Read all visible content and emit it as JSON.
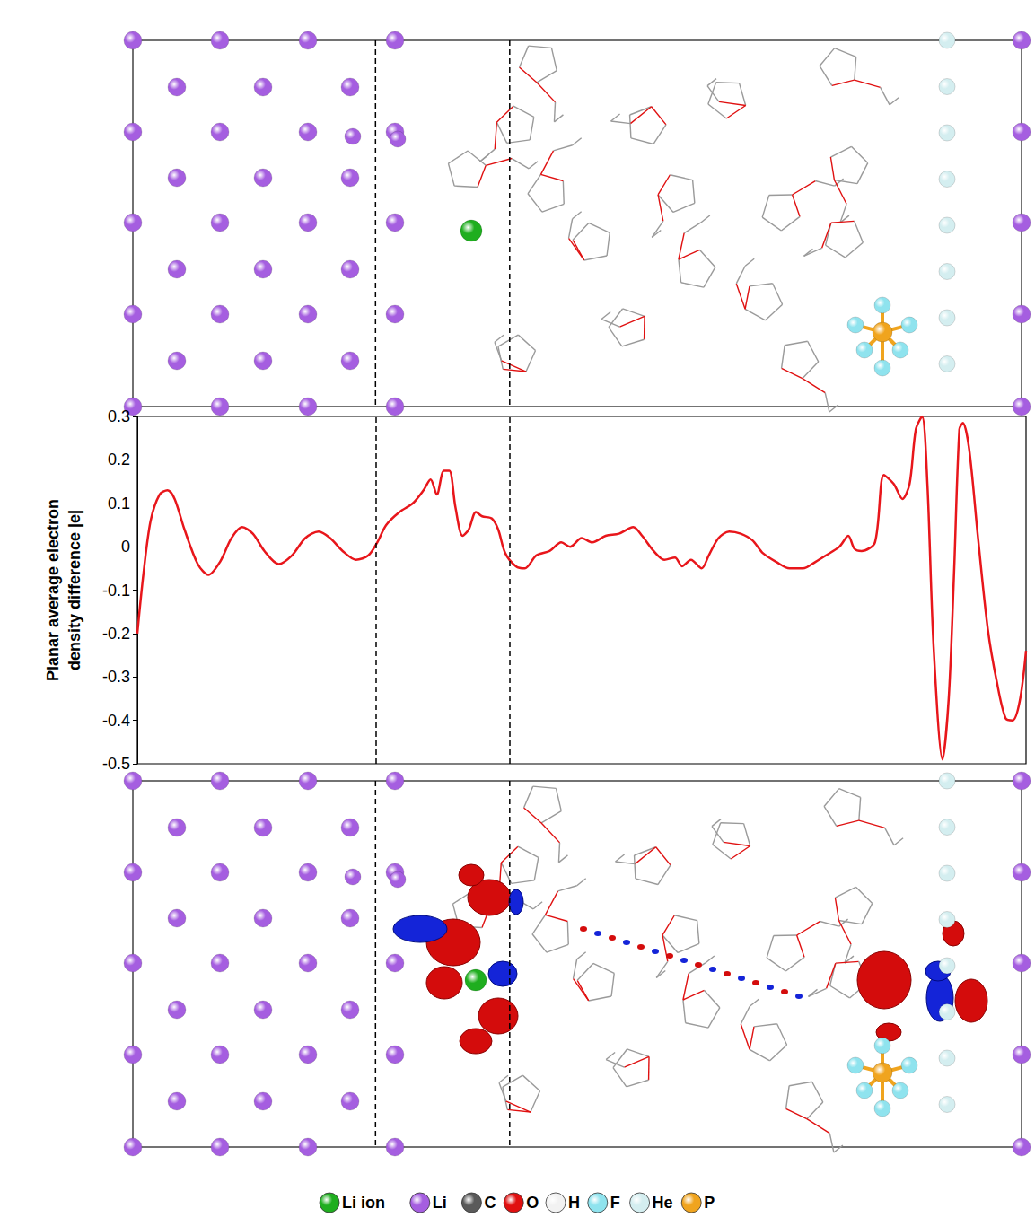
{
  "chart_data": {
    "type": "line",
    "y_label": "Planar average electron density difference |e|",
    "x": [
      0,
      0.7,
      1.5,
      2.5,
      3.4,
      4.2,
      5.3,
      6.8,
      8.0,
      9.3,
      10.6,
      11.8,
      13.0,
      14.3,
      15.9,
      17.4,
      18.9,
      20.4,
      21.7,
      23.1,
      24.6,
      26.0,
      27.0,
      28.0,
      29.5,
      31.0,
      32.2,
      33.0,
      33.7,
      34.5,
      35.1,
      35.8,
      36.6,
      37.3,
      38.1,
      38.8,
      39.9,
      40.6,
      41.4,
      42.6,
      43.6,
      44.9,
      46.4,
      47.7,
      48.7,
      50.0,
      51.2,
      52.7,
      54.2,
      55.8,
      56.8,
      58.1,
      59.3,
      60.5,
      61.3,
      62.3,
      63.5,
      64.3,
      65.4,
      66.6,
      67.9,
      69.2,
      70.4,
      71.9,
      73.4,
      74.9,
      76.3,
      77.5,
      79.0,
      80.0,
      80.7,
      81.5,
      83.0,
      84.0,
      85.1,
      86.1,
      86.9,
      87.6,
      88.3,
      88.9,
      89.6,
      90.6,
      91.3,
      91.9,
      92.5,
      92.9,
      93.6,
      94.6,
      95.7,
      96.7,
      97.7,
      98.5,
      99.3,
      100
    ],
    "series": [
      {
        "name": "Planar average electron density difference",
        "color": "#e8161b",
        "values": [
          -0.2,
          -0.06,
          0.06,
          0.12,
          0.13,
          0.11,
          0.04,
          -0.04,
          -0.065,
          -0.035,
          0.02,
          0.045,
          0.03,
          -0.01,
          -0.04,
          -0.02,
          0.02,
          0.035,
          0.02,
          -0.01,
          -0.03,
          -0.02,
          0.01,
          0.05,
          0.08,
          0.1,
          0.13,
          0.155,
          0.12,
          0.175,
          0.175,
          0.09,
          0.025,
          0.04,
          0.08,
          0.07,
          0.065,
          0.04,
          -0.015,
          -0.045,
          -0.05,
          -0.02,
          -0.01,
          0.01,
          0.0,
          0.02,
          0.01,
          0.025,
          0.03,
          0.045,
          0.025,
          -0.01,
          -0.03,
          -0.025,
          -0.045,
          -0.03,
          -0.05,
          -0.02,
          0.02,
          0.035,
          0.03,
          0.015,
          -0.015,
          -0.035,
          -0.05,
          -0.05,
          -0.035,
          -0.02,
          0.0,
          0.025,
          -0.005,
          -0.01,
          0.01,
          0.165,
          0.145,
          0.11,
          0.145,
          0.27,
          0.3,
          0.145,
          -0.23,
          -0.49,
          -0.35,
          -0.06,
          0.27,
          0.285,
          0.225,
          0.02,
          -0.19,
          -0.31,
          -0.395,
          -0.4,
          -0.355,
          -0.24
        ]
      }
    ],
    "xlim": [
      0,
      100
    ],
    "ylim": [
      -0.5,
      0.3
    ],
    "yticks": [
      -0.5,
      -0.4,
      -0.3,
      -0.2,
      -0.1,
      0,
      0.1,
      0.2,
      0.3
    ],
    "interface_x": [
      26.8,
      41.9
    ],
    "grid": false,
    "tick_labels": "y"
  },
  "legend_items": [
    {
      "label": "Li ion",
      "color": "#1fae1f"
    },
    {
      "label": "Li",
      "color": "#a55ee0"
    },
    {
      "label": "C",
      "color": "#5a5a5a"
    },
    {
      "label": "O",
      "color": "#e01010"
    },
    {
      "label": "H",
      "color": "#f2f2f2"
    },
    {
      "label": "F",
      "color": "#8fe3ee"
    },
    {
      "label": "He",
      "color": "#d4eef0"
    },
    {
      "label": "P",
      "color": "#f0a41e"
    }
  ]
}
